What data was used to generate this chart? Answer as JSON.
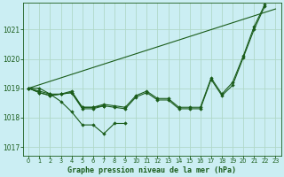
{
  "title": "Graphe pression niveau de la mer (hPa)",
  "background_color": "#cbeef3",
  "grid_color": "#b0d8c8",
  "line_color": "#1a5c1a",
  "ylim": [
    1016.7,
    1021.9
  ],
  "xlim": [
    -0.5,
    23.5
  ],
  "yticks": [
    1017,
    1018,
    1019,
    1020,
    1021
  ],
  "xticks": [
    0,
    1,
    2,
    3,
    4,
    5,
    6,
    7,
    8,
    9,
    10,
    11,
    12,
    13,
    14,
    15,
    16,
    17,
    18,
    19,
    20,
    21,
    22,
    23
  ],
  "figsize": [
    3.2,
    2.0
  ],
  "dpi": 100,
  "series": [
    {
      "x": [
        0,
        1,
        2,
        3,
        4,
        5,
        6,
        7,
        8,
        9
      ],
      "y": [
        1019.0,
        1019.0,
        1018.8,
        1018.55,
        1018.2,
        1017.75,
        1017.75,
        1017.45,
        1017.8,
        1017.8
      ],
      "has_markers": true
    },
    {
      "x": [
        0,
        1,
        2,
        3,
        4,
        5,
        6,
        7
      ],
      "y": [
        1019.0,
        1018.85,
        1018.75,
        1018.8,
        1018.85,
        1018.35,
        1018.35,
        1018.4
      ],
      "has_markers": true
    },
    {
      "x": [
        0,
        1,
        2,
        3,
        4,
        5,
        6,
        7,
        8,
        9,
        10,
        11,
        12,
        13,
        14,
        15,
        16,
        17,
        18,
        19,
        20,
        21,
        22
      ],
      "y": [
        1019.0,
        1018.85,
        1018.75,
        1018.8,
        1018.85,
        1018.3,
        1018.3,
        1018.4,
        1018.35,
        1018.3,
        1018.7,
        1018.85,
        1018.6,
        1018.6,
        1018.3,
        1018.3,
        1018.3,
        1019.3,
        1018.75,
        1019.1,
        1020.05,
        1021.0,
        1021.8
      ],
      "has_markers": true
    },
    {
      "x": [
        0,
        1,
        2,
        3,
        4,
        5,
        6,
        7,
        8,
        9,
        10,
        11,
        12,
        13,
        14,
        15,
        16,
        17,
        18,
        19,
        20,
        21,
        22
      ],
      "y": [
        1019.0,
        1018.9,
        1018.8,
        1018.8,
        1018.9,
        1018.35,
        1018.35,
        1018.45,
        1018.4,
        1018.35,
        1018.75,
        1018.9,
        1018.65,
        1018.65,
        1018.35,
        1018.35,
        1018.35,
        1019.35,
        1018.8,
        1019.2,
        1020.1,
        1021.1,
        1021.85
      ],
      "has_markers": true
    },
    {
      "x": [
        0,
        23
      ],
      "y": [
        1019.0,
        1021.7
      ],
      "has_markers": false
    }
  ]
}
